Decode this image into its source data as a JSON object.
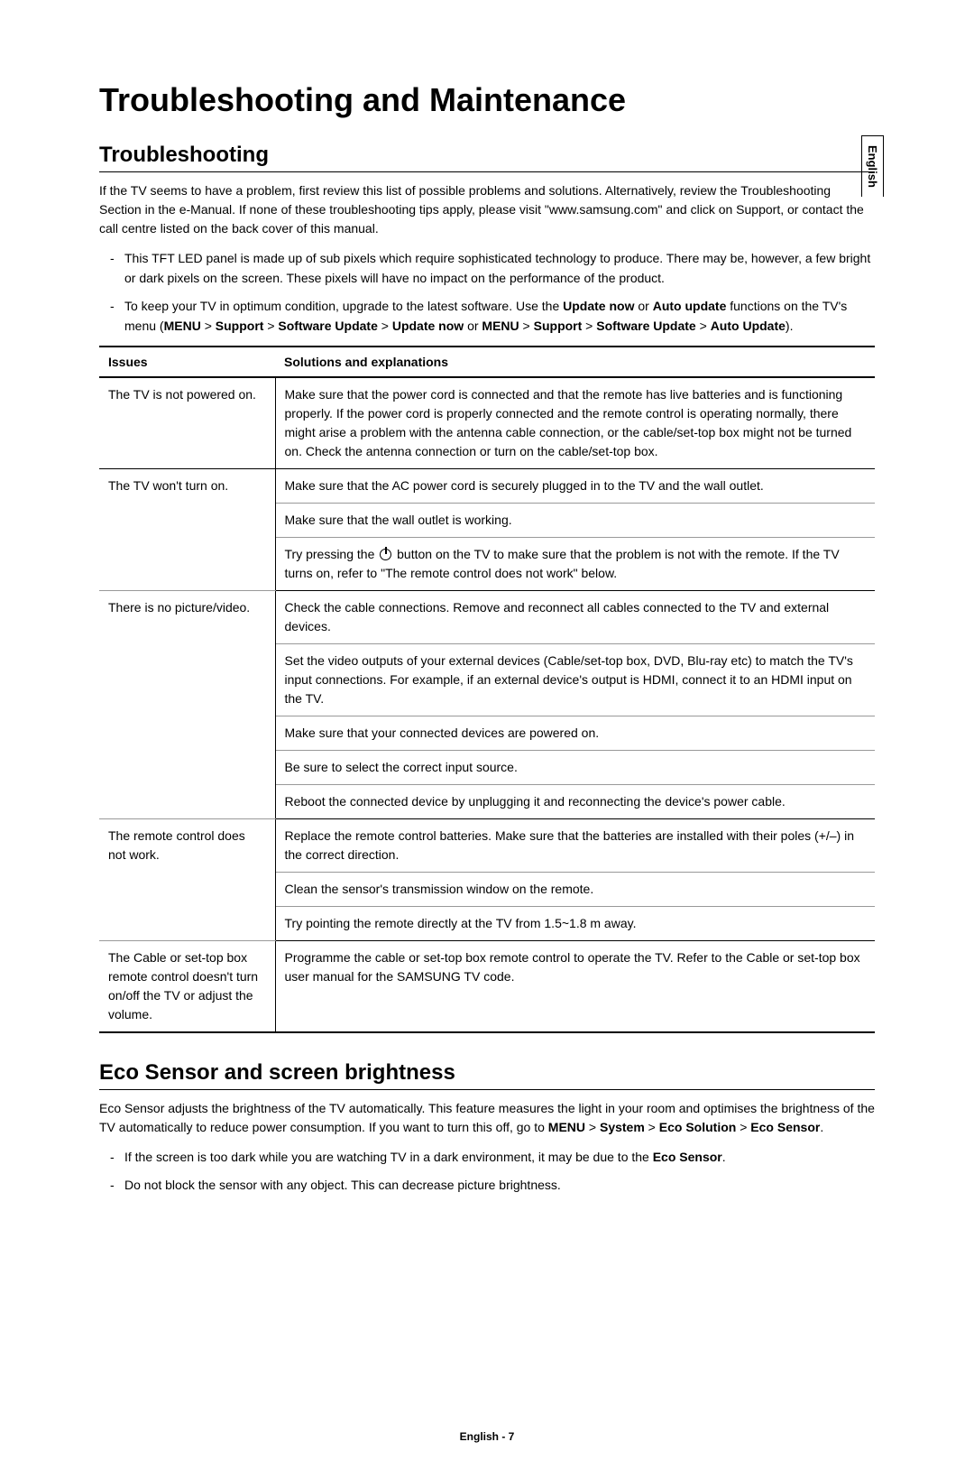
{
  "side_lang": "English",
  "title": "Troubleshooting and Maintenance",
  "section1": {
    "heading": "Troubleshooting",
    "intro": "If the TV seems to have a problem, first review this list of possible problems and solutions. Alternatively, review the Troubleshooting Section in the e-Manual. If none of these troubleshooting tips apply, please visit \"www.samsung.com\" and click on Support, or contact the call centre listed on the back cover of this manual.",
    "notes": {
      "n1": "This TFT LED panel is made up of sub pixels which require sophisticated technology to produce. There may be, however, a few bright or dark pixels on the screen. These pixels will have no impact on the performance of the product.",
      "n2_a": "To keep your TV in optimum condition, upgrade to the latest software. Use the ",
      "n2_b": "Update now",
      "n2_c": " or ",
      "n2_d": "Auto update",
      "n2_e": " functions on the TV's menu (",
      "n2_f": "MENU",
      "n2_g": " > ",
      "n2_h": "Support",
      "n2_i": " > ",
      "n2_j": "Software Update",
      "n2_k": " > ",
      "n2_l": "Update now",
      "n2_m": " or ",
      "n2_n": "MENU",
      "n2_o": " > ",
      "n2_p": "Support",
      "n2_q": " > ",
      "n2_r": "Software Update",
      "n2_s": " > ",
      "n2_t": "Auto Update",
      "n2_u": ")."
    }
  },
  "table": {
    "col1": "Issues",
    "col2": "Solutions and explanations",
    "rows": {
      "r1_issue": "The TV is not powered on.",
      "r1_s1": "Make sure that the power cord is connected and that the remote has live batteries and is functioning properly. If the power cord is properly connected and the remote control is operating normally, there might arise a problem with the antenna cable connection, or the cable/set-top box might not be turned on. Check the antenna connection or turn on the cable/set-top box.",
      "r2_issue": "The TV won't turn on.",
      "r2_s1": "Make sure that the AC power cord is securely plugged in to the TV and the wall outlet.",
      "r2_s2": "Make sure that the wall outlet is working.",
      "r2_s3a": "Try pressing the ",
      "r2_s3b": " button on the TV to make sure that the problem is not with the remote. If the TV turns on, refer to \"The remote control does not work\" below.",
      "r3_issue": "There is no picture/video.",
      "r3_s1": "Check the cable connections. Remove and reconnect all cables connected to the TV and external devices.",
      "r3_s2": "Set the video outputs of your external devices (Cable/set-top box, DVD, Blu-ray etc) to match the TV's input connections. For example, if an external device's output is HDMI, connect it to an HDMI input on the TV.",
      "r3_s3": "Make sure that your connected devices are powered on.",
      "r3_s4": "Be sure to select the correct input source.",
      "r3_s5": "Reboot the connected device by unplugging it and reconnecting the device's power cable.",
      "r4_issue": "The remote control does not work.",
      "r4_s1": "Replace the remote control batteries. Make sure that the batteries are installed with their poles (+/–) in the correct direction.",
      "r4_s2": "Clean the sensor's transmission window on the remote.",
      "r4_s3": "Try pointing the remote directly at the TV from 1.5~1.8 m away.",
      "r5_issue": "The Cable or set-top box remote control doesn't turn on/off the TV or adjust the volume.",
      "r5_s1": "Programme the cable or set-top box remote control to operate the TV. Refer to the Cable or set-top box user manual for the SAMSUNG TV code."
    }
  },
  "section2": {
    "heading": "Eco Sensor and screen brightness",
    "intro_a": "Eco Sensor adjusts the brightness of the TV automatically. This feature measures the light in your room and optimises the brightness of the TV automatically to reduce power consumption. If you want to turn this off, go to ",
    "intro_menu": "MENU",
    "intro_gt1": " > ",
    "intro_system": "System",
    "intro_gt2": " > ",
    "intro_ecosol": "Eco Solution",
    "intro_gt3": " > ",
    "intro_ecosen": "Eco Sensor",
    "intro_end": ".",
    "notes": {
      "n1_a": "If the screen is too dark while you are watching TV in a dark environment, it may be due to the ",
      "n1_b": "Eco Sensor",
      "n1_c": ".",
      "n2": "Do not block the sensor with any object. This can decrease picture brightness."
    }
  },
  "footer": "English - 7"
}
